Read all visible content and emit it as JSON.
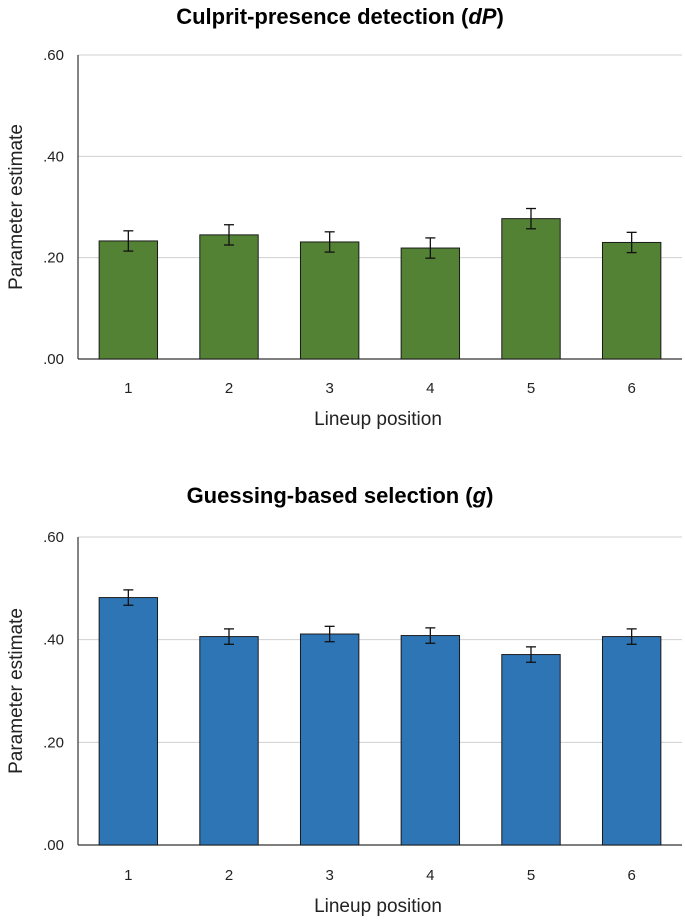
{
  "chart_data": [
    {
      "type": "bar",
      "title": "Culprit-presence detection",
      "title_symbol": "dP",
      "xlabel": "Lineup position",
      "ylabel": "Parameter estimate",
      "categories": [
        "1",
        "2",
        "3",
        "4",
        "5",
        "6"
      ],
      "values": [
        0.233,
        0.245,
        0.231,
        0.219,
        0.277,
        0.23
      ],
      "error": [
        0.02,
        0.02,
        0.02,
        0.02,
        0.02,
        0.02
      ],
      "ylim": [
        0,
        0.6
      ],
      "yticks": [
        0,
        0.2,
        0.4,
        0.6
      ],
      "ytick_labels": [
        ".00",
        ".20",
        ".40",
        ".60"
      ],
      "grid": true,
      "color": "#548235"
    },
    {
      "type": "bar",
      "title": "Guessing-based selection",
      "title_symbol": "g",
      "xlabel": "Lineup position",
      "ylabel": "Parameter estimate",
      "categories": [
        "1",
        "2",
        "3",
        "4",
        "5",
        "6"
      ],
      "values": [
        0.482,
        0.406,
        0.411,
        0.408,
        0.371,
        0.406
      ],
      "error": [
        0.015,
        0.015,
        0.015,
        0.015,
        0.015,
        0.015
      ],
      "ylim": [
        0,
        0.6
      ],
      "yticks": [
        0,
        0.2,
        0.4,
        0.6
      ],
      "ytick_labels": [
        ".00",
        ".20",
        ".40",
        ".60"
      ],
      "grid": true,
      "color": "#2E75B6"
    }
  ]
}
